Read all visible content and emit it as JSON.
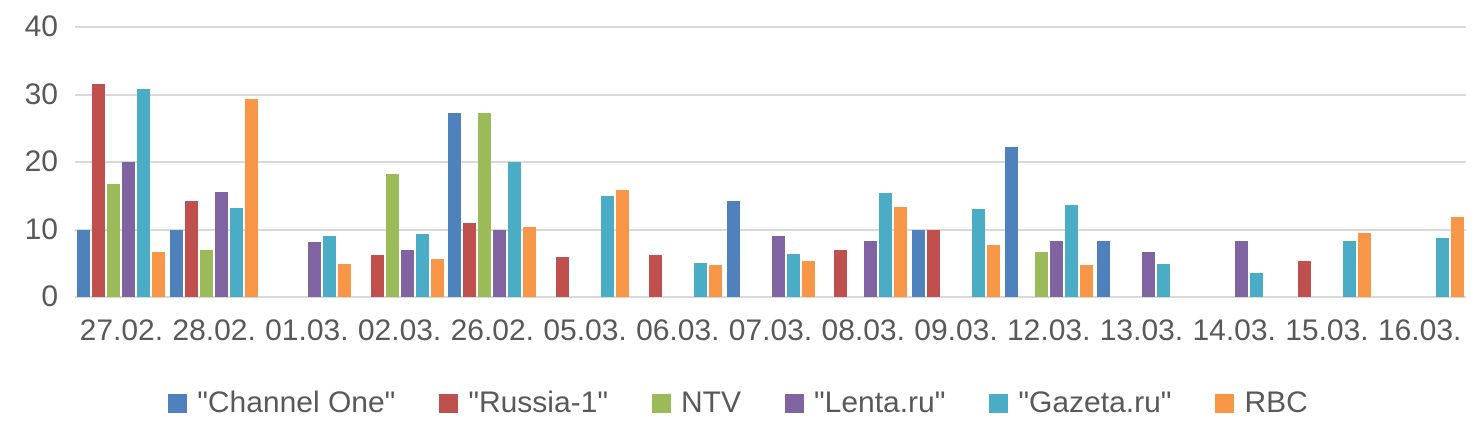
{
  "chart_data": {
    "type": "bar",
    "title": "",
    "xlabel": "",
    "ylabel": "",
    "ylim": [
      0,
      40
    ],
    "y_ticks": [
      0,
      10,
      20,
      30,
      40
    ],
    "grid": true,
    "legend_position": "bottom",
    "categories": [
      "27.02.",
      "28.02.",
      "01.03.",
      "02.03.",
      "26.02.",
      "05.03.",
      "06.03.",
      "07.03.",
      "08.03.",
      "09.03.",
      "12.03.",
      "13.03.",
      "14.03.",
      "15.03.",
      "16.03."
    ],
    "series": [
      {
        "name": "\"Channel One\"",
        "color": "#4F81BD",
        "values": [
          10,
          10,
          0,
          0,
          27.3,
          0,
          0,
          14.2,
          0,
          10,
          22.2,
          8.3,
          0,
          0,
          0
        ]
      },
      {
        "name": "\"Russia-1\"",
        "color": "#C0504D",
        "values": [
          31.5,
          14.2,
          0,
          6.2,
          11,
          5.9,
          6.2,
          0,
          7,
          10,
          0,
          0,
          0,
          5.3,
          0
        ]
      },
      {
        "name": "NTV",
        "color": "#9BBB59",
        "values": [
          16.7,
          7,
          0,
          18.2,
          27.2,
          0,
          0,
          0,
          0,
          0,
          6.7,
          0,
          0,
          0,
          0
        ]
      },
      {
        "name": "\"Lenta.ru\"",
        "color": "#8064A2",
        "values": [
          20,
          15.5,
          8.2,
          7,
          10,
          0,
          0,
          9.1,
          8.3,
          0,
          8.3,
          6.7,
          8.3,
          0,
          0
        ]
      },
      {
        "name": "\"Gazeta.ru\"",
        "color": "#4BACC6",
        "values": [
          30.8,
          13.2,
          9,
          9.4,
          20,
          14.9,
          5,
          6.3,
          15.4,
          13,
          13.6,
          4.9,
          3.6,
          8.3,
          8.8
        ]
      },
      {
        "name": "RBC",
        "color": "#F79646",
        "values": [
          6.6,
          29.4,
          4.9,
          5.6,
          10.4,
          15.8,
          4.8,
          5.3,
          13.3,
          7.7,
          4.8,
          0,
          0,
          9.5,
          11.8
        ]
      }
    ],
    "colors": {
      "text": "#595959",
      "gridline": "#d9d9d9",
      "background": "#ffffff"
    }
  }
}
